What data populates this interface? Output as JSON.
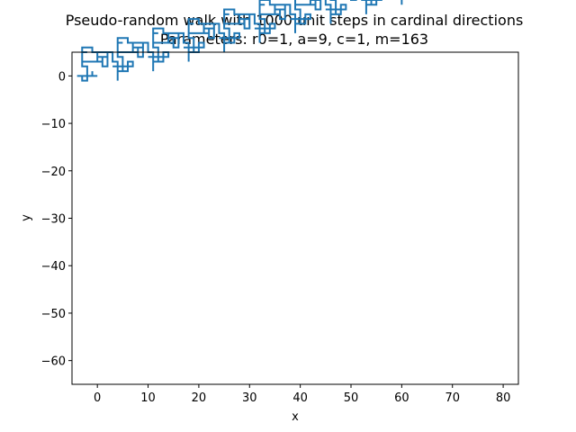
{
  "chart_data": {
    "type": "line",
    "title": "Pseudo-random walk with 1000 unit steps in cardinal directions",
    "subtitle": "Parameters: r0=1, a=9, c=1, m=163",
    "xlabel": "x",
    "ylabel": "y",
    "xlim": [
      -5,
      83
    ],
    "ylim": [
      -65,
      5
    ],
    "xticks": [
      0,
      10,
      20,
      30,
      40,
      50,
      60,
      70,
      80
    ],
    "yticks": [
      0,
      -10,
      -20,
      -30,
      -40,
      -50,
      -60
    ],
    "grid": false,
    "series_color": "#1f77b4",
    "generator": {
      "r0": 1,
      "a": 9,
      "c": 1,
      "m": 163,
      "steps": 1000
    }
  }
}
